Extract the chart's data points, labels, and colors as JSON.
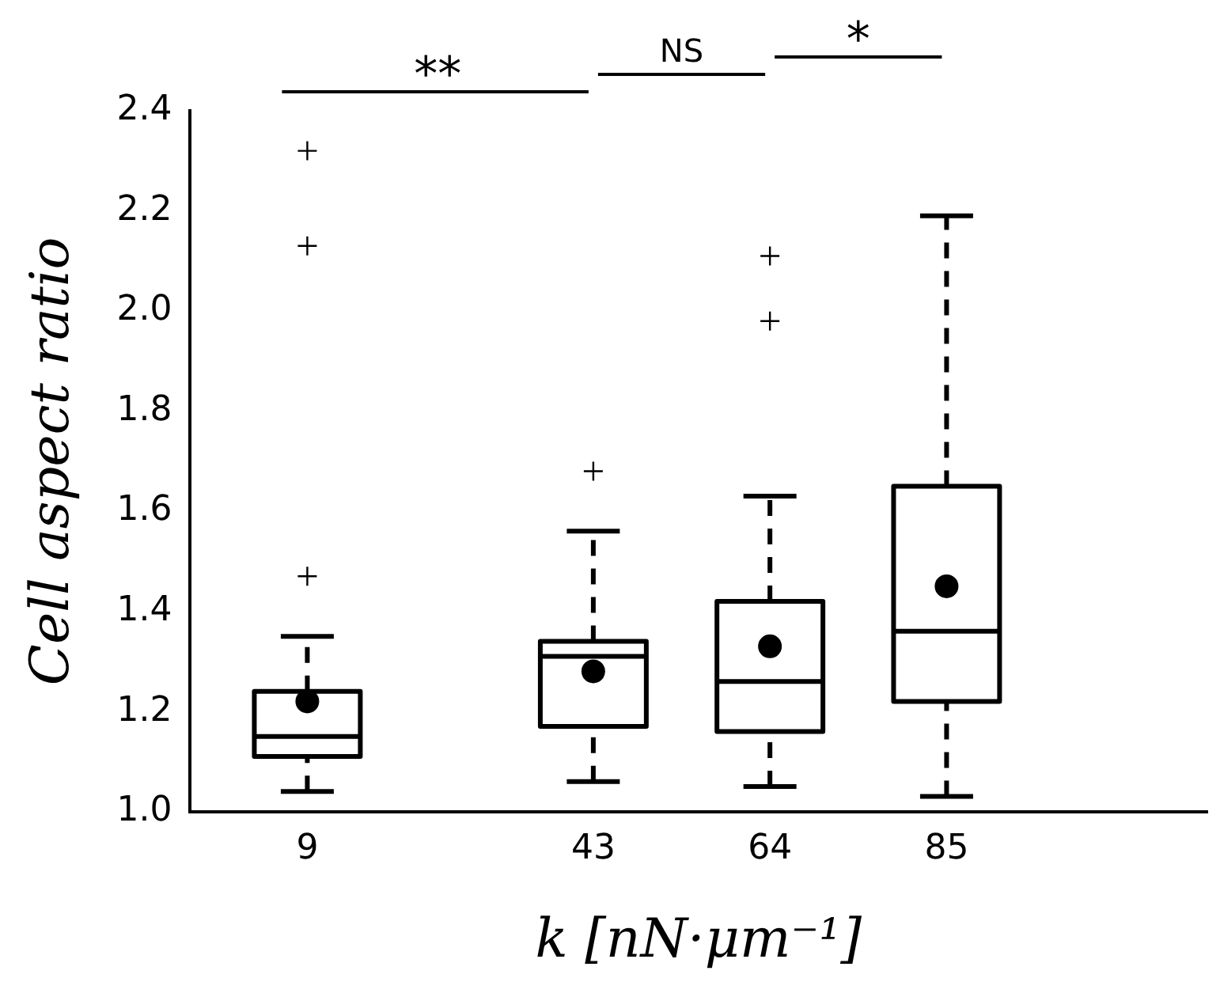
{
  "chart_data": {
    "type": "box",
    "x": [
      9,
      43,
      64,
      85
    ],
    "color": "#000000",
    "boxes": [
      {
        "low": 1.04,
        "q1": 1.11,
        "median": 1.15,
        "q3": 1.24,
        "high": 1.35,
        "mean": 1.22,
        "outliers": [
          1.47,
          2.13,
          2.32
        ]
      },
      {
        "low": 1.06,
        "q1": 1.17,
        "median": 1.31,
        "q3": 1.34,
        "high": 1.56,
        "mean": 1.28,
        "outliers": [
          1.68
        ]
      },
      {
        "low": 1.05,
        "q1": 1.16,
        "median": 1.26,
        "q3": 1.42,
        "high": 1.63,
        "mean": 1.33,
        "outliers": [
          1.98,
          2.11
        ]
      },
      {
        "low": 1.03,
        "q1": 1.22,
        "median": 1.36,
        "q3": 1.65,
        "high": 2.19,
        "mean": 1.45
      }
    ],
    "xlim": [
      -5,
      116
    ],
    "xticks": [
      9,
      43,
      64,
      85
    ],
    "ylim": [
      1.0,
      2.4
    ],
    "yticks": [
      {
        "value": 1.0,
        "label": "1.0"
      },
      {
        "value": 1.2,
        "label": "1.2"
      },
      {
        "value": 1.4,
        "label": "1.4"
      },
      {
        "value": 1.6,
        "label": "1.6"
      },
      {
        "value": 1.8,
        "label": "1.8"
      },
      {
        "value": 2.0,
        "label": "2.0"
      },
      {
        "value": 2.2,
        "label": "2.2"
      },
      {
        "value": 2.4,
        "label": "2.4"
      }
    ],
    "xlabel": "k [nN·μm⁻¹]",
    "ylabel": "Cell aspect ratio",
    "annotations": [
      "**",
      "NS",
      "*"
    ],
    "legend": false
  }
}
